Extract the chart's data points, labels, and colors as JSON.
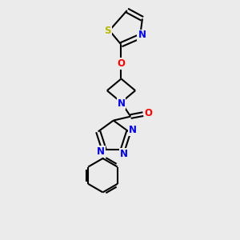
{
  "bg_color": "#ebebeb",
  "line_color": "#000000",
  "bond_width": 1.5,
  "atom_colors": {
    "N": "#0000ff",
    "O": "#ff0000",
    "S": "#b8b800",
    "C": "#000000"
  },
  "font_size": 8.5,
  "figsize": [
    3.0,
    3.0
  ],
  "dpi": 100
}
